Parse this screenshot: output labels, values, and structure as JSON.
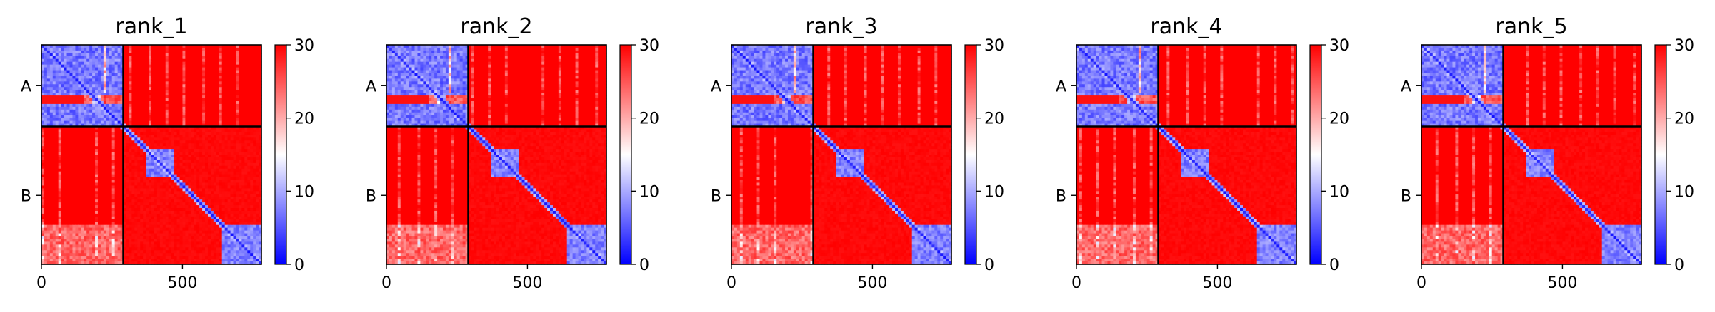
{
  "chart_data": [
    {
      "type": "heatmap",
      "title": "rank_1",
      "variant": 0,
      "x_ticks": [
        0,
        500
      ],
      "xlim": [
        0,
        780
      ],
      "ylim": [
        0,
        780
      ],
      "chain_boundary": 290,
      "chains": [
        {
          "label": "A",
          "start": 0,
          "end": 290
        },
        {
          "label": "B",
          "start": 290,
          "end": 780
        }
      ],
      "colorbar": {
        "min": 0,
        "max": 30,
        "ticks": [
          0,
          10,
          20,
          30
        ],
        "colormap": "bwr"
      },
      "low_error_blocks": [
        [
          0,
          290,
          0,
          290
        ],
        [
          0,
          290,
          0,
          290
        ],
        [
          370,
          470,
          370,
          470
        ],
        [
          640,
          780,
          640,
          780
        ]
      ]
    },
    {
      "type": "heatmap",
      "title": "rank_2",
      "variant": 1,
      "x_ticks": [
        0,
        500
      ],
      "xlim": [
        0,
        780
      ],
      "ylim": [
        0,
        780
      ],
      "chain_boundary": 290,
      "chains": [
        {
          "label": "A",
          "start": 0,
          "end": 290
        },
        {
          "label": "B",
          "start": 290,
          "end": 780
        }
      ],
      "colorbar": {
        "min": 0,
        "max": 30,
        "ticks": [
          0,
          10,
          20,
          30
        ],
        "colormap": "bwr"
      },
      "low_error_blocks": [
        [
          0,
          290,
          0,
          290
        ],
        [
          370,
          470,
          370,
          470
        ],
        [
          640,
          780,
          640,
          780
        ]
      ]
    },
    {
      "type": "heatmap",
      "title": "rank_3",
      "variant": 2,
      "x_ticks": [
        0,
        500
      ],
      "xlim": [
        0,
        780
      ],
      "ylim": [
        0,
        780
      ],
      "chain_boundary": 290,
      "chains": [
        {
          "label": "A",
          "start": 0,
          "end": 290
        },
        {
          "label": "B",
          "start": 290,
          "end": 780
        }
      ],
      "colorbar": {
        "min": 0,
        "max": 30,
        "ticks": [
          0,
          10,
          20,
          30
        ],
        "colormap": "bwr"
      },
      "low_error_blocks": [
        [
          0,
          290,
          0,
          290
        ],
        [
          370,
          470,
          370,
          470
        ],
        [
          640,
          780,
          640,
          780
        ]
      ]
    },
    {
      "type": "heatmap",
      "title": "rank_4",
      "variant": 3,
      "x_ticks": [
        0,
        500
      ],
      "xlim": [
        0,
        780
      ],
      "ylim": [
        0,
        780
      ],
      "chain_boundary": 290,
      "chains": [
        {
          "label": "A",
          "start": 0,
          "end": 290
        },
        {
          "label": "B",
          "start": 290,
          "end": 780
        }
      ],
      "colorbar": {
        "min": 0,
        "max": 30,
        "ticks": [
          0,
          10,
          20,
          30
        ],
        "colormap": "bwr"
      },
      "low_error_blocks": [
        [
          0,
          290,
          0,
          290
        ],
        [
          370,
          470,
          370,
          470
        ],
        [
          640,
          780,
          640,
          780
        ]
      ]
    },
    {
      "type": "heatmap",
      "title": "rank_5",
      "variant": 4,
      "x_ticks": [
        0,
        500
      ],
      "xlim": [
        0,
        780
      ],
      "ylim": [
        0,
        780
      ],
      "chain_boundary": 290,
      "chains": [
        {
          "label": "A",
          "start": 0,
          "end": 290
        },
        {
          "label": "B",
          "start": 290,
          "end": 780
        }
      ],
      "colorbar": {
        "min": 0,
        "max": 30,
        "ticks": [
          0,
          10,
          20,
          30
        ],
        "colormap": "bwr"
      },
      "low_error_blocks": [
        [
          0,
          290,
          0,
          290
        ],
        [
          370,
          470,
          370,
          470
        ],
        [
          640,
          780,
          640,
          780
        ]
      ]
    }
  ],
  "colors": {
    "low": "#0000ff",
    "mid": "#ffffff",
    "high": "#ff0000",
    "boundary": "#000000"
  }
}
